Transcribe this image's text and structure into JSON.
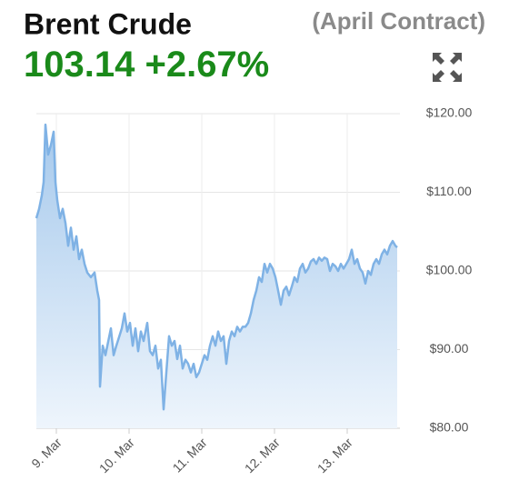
{
  "chart_data": {
    "type": "area",
    "title": "Brent Crude",
    "subtitle": "(April Contract)",
    "price": "103.14",
    "change": "+2.67%",
    "color": "#7fb2e5",
    "x": [
      8.725,
      8.763,
      8.8,
      8.825,
      8.85,
      8.888,
      8.925,
      8.963,
      8.988,
      9.013,
      9.05,
      9.088,
      9.125,
      9.163,
      9.2,
      9.238,
      9.275,
      9.313,
      9.35,
      9.388,
      9.425,
      9.475,
      9.525,
      9.563,
      9.588,
      9.6,
      9.638,
      9.675,
      9.713,
      9.75,
      9.788,
      9.825,
      9.863,
      9.9,
      9.938,
      9.975,
      10.013,
      10.05,
      10.088,
      10.125,
      10.163,
      10.2,
      10.25,
      10.288,
      10.325,
      10.363,
      10.4,
      10.438,
      10.475,
      10.513,
      10.55,
      10.588,
      10.625,
      10.663,
      10.7,
      10.738,
      10.775,
      10.813,
      10.85,
      10.888,
      10.925,
      10.963,
      11.0,
      11.038,
      11.075,
      11.113,
      11.15,
      11.188,
      11.225,
      11.263,
      11.3,
      11.338,
      11.375,
      11.413,
      11.45,
      11.488,
      11.525,
      11.563,
      11.6,
      11.638,
      11.675,
      11.713,
      11.75,
      11.788,
      11.825,
      11.863,
      11.9,
      11.938,
      11.975,
      12.013,
      12.05,
      12.088,
      12.125,
      12.163,
      12.2,
      12.238,
      12.275,
      12.313,
      12.35,
      12.388,
      12.425,
      12.463,
      12.5,
      12.538,
      12.575,
      12.613,
      12.65,
      12.688,
      12.725,
      12.763,
      12.8,
      12.838,
      12.875,
      12.913,
      12.95,
      12.988,
      13.025,
      13.063,
      13.1,
      13.138,
      13.175,
      13.213,
      13.25,
      13.288,
      13.325,
      13.363,
      13.4,
      13.438,
      13.475,
      13.513,
      13.55,
      13.588,
      13.625,
      13.663,
      13.688
    ],
    "values": [
      106.7,
      107.9,
      109.6,
      111.3,
      118.6,
      114.8,
      116,
      117.7,
      111.3,
      109,
      106.7,
      107.9,
      106.1,
      103.2,
      105.5,
      102.7,
      104.4,
      101.5,
      102.7,
      100.9,
      99.8,
      99.2,
      99.8,
      97.5,
      96.3,
      85.3,
      90.5,
      89.3,
      91,
      92.7,
      89.3,
      90.5,
      91.6,
      92.7,
      94.6,
      92.3,
      93.4,
      90.5,
      92.7,
      89.8,
      92.3,
      91.1,
      93.4,
      89.8,
      89.3,
      90.5,
      87.6,
      88.7,
      82.4,
      87.1,
      91.7,
      90.5,
      91.1,
      88.8,
      90.5,
      87.6,
      88.7,
      88.2,
      87.1,
      88.2,
      86.5,
      87.1,
      88.2,
      89.3,
      88.7,
      90.5,
      91.7,
      90.5,
      92.3,
      91.1,
      91.7,
      88.2,
      91.1,
      92.3,
      91.7,
      92.9,
      92.3,
      92.9,
      92.9,
      93.4,
      94.6,
      96.3,
      97.5,
      99.2,
      98.6,
      100.9,
      99.8,
      100.9,
      100.3,
      99.2,
      97.5,
      95.7,
      97.5,
      98,
      96.9,
      98,
      99.2,
      98.6,
      100.3,
      100.9,
      99.8,
      100.3,
      101.2,
      101.5,
      100.9,
      101.7,
      101.3,
      101.7,
      101.5,
      100,
      100.9,
      100.6,
      100,
      100.9,
      100.3,
      100.9,
      101.5,
      102.7,
      100.9,
      101.5,
      100.3,
      99.8,
      98.4,
      100,
      99.5,
      100.9,
      101.5,
      100.9,
      102.1,
      102.7,
      102.1,
      103.2,
      103.8,
      103.2,
      103
    ],
    "xlim": [
      8.725,
      13.725
    ],
    "xticks": [
      {
        "value": 9,
        "label": "9. Mar"
      },
      {
        "value": 10,
        "label": "10. Mar"
      },
      {
        "value": 11,
        "label": "11. Mar"
      },
      {
        "value": 12,
        "label": "12. Mar"
      },
      {
        "value": 13,
        "label": "13. Mar"
      }
    ],
    "ylim": [
      80,
      120
    ],
    "yticks": [
      {
        "value": 80,
        "label": "$80.00"
      },
      {
        "value": 90,
        "label": "$90.00"
      },
      {
        "value": 100,
        "label": "$100.00"
      },
      {
        "value": 110,
        "label": "$110.00"
      },
      {
        "value": 120,
        "label": "$120.00"
      }
    ],
    "grid": true
  }
}
